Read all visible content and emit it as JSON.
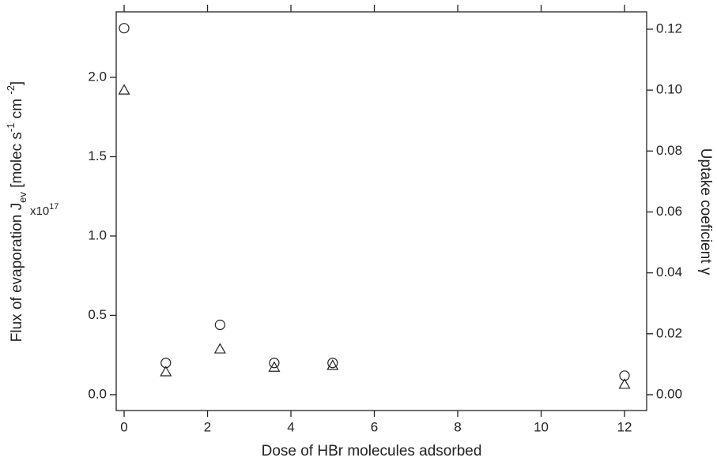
{
  "chart_data": {
    "type": "scatter",
    "xlabel": "Dose of HBr molecules adsorbed",
    "ylabel_parts": [
      {
        "text": "Flux of evaporation J"
      },
      {
        "text": "ev",
        "shift": "sub"
      },
      {
        "text": " [molec s"
      },
      {
        "text": "-1",
        "shift": "super"
      },
      {
        "text": " cm "
      },
      {
        "text": "-2",
        "shift": "super"
      },
      {
        "text": "]"
      }
    ],
    "y_multiplier": {
      "base": "x10",
      "exponent": "17"
    },
    "y2label": "Uptake coeficient γ",
    "xlim": [
      -0.19,
      12.53
    ],
    "xticks": [
      0,
      2,
      4,
      6,
      8,
      10,
      12
    ],
    "ylim": [
      -0.1,
      2.413
    ],
    "yticks": [
      {
        "value": 0,
        "label": "0.0"
      },
      {
        "value": 0.5,
        "label": "0.5"
      },
      {
        "value": 1,
        "label": "1.0"
      },
      {
        "value": 1.5,
        "label": "1.5"
      },
      {
        "value": 2,
        "label": "2.0"
      }
    ],
    "y2lim": [
      -0.0052,
      0.1257
    ],
    "y2ticks": [
      {
        "value": 0,
        "label": "0.00"
      },
      {
        "value": 0.02,
        "label": "0.02"
      },
      {
        "value": 0.04,
        "label": "0.04"
      },
      {
        "value": 0.06,
        "label": "0.06"
      },
      {
        "value": 0.08,
        "label": "0.08"
      },
      {
        "value": 0.1,
        "label": "0.10"
      },
      {
        "value": 0.12,
        "label": "0.12"
      }
    ],
    "mirror_x_ticks": true,
    "series": [
      {
        "marker": "circle",
        "color": "#222222",
        "axis": "y",
        "x": [
          0,
          1,
          2.3,
          3.6,
          5,
          12
        ],
        "values": [
          2.31,
          0.2,
          0.44,
          0.2,
          0.2,
          0.12
        ]
      },
      {
        "marker": "triangle",
        "color": "#222222",
        "axis": "y2",
        "x": [
          0,
          1,
          2.3,
          3.6,
          5,
          12
        ],
        "values": [
          0.1,
          0.0075,
          0.015,
          0.009,
          0.0096,
          0.0034
        ]
      }
    ]
  }
}
